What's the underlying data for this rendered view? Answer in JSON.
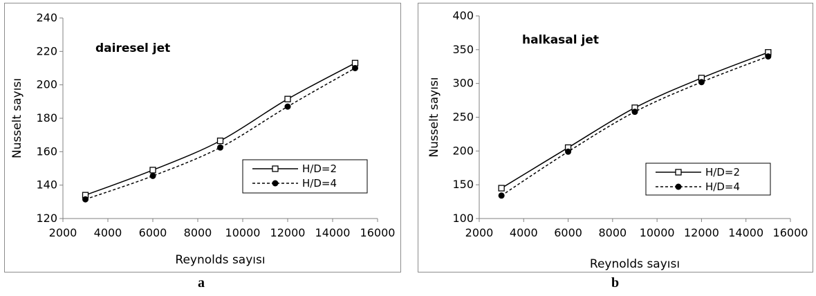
{
  "chart_data": [
    {
      "type": "line",
      "title": "dairesel jet",
      "xlabel": "Reynolds sayısı",
      "ylabel": "Nusselt sayısı",
      "xlim": [
        2000,
        16000
      ],
      "ylim": [
        120,
        240
      ],
      "xticks": [
        2000,
        4000,
        6000,
        8000,
        10000,
        12000,
        14000,
        16000
      ],
      "yticks": [
        120,
        140,
        160,
        180,
        200,
        220,
        240
      ],
      "x": [
        3000,
        6000,
        9000,
        12000,
        15000
      ],
      "series": [
        {
          "name": "H/D=2",
          "values": [
            134,
            149,
            166.5,
            191.5,
            213
          ],
          "line": "solid",
          "marker": "open-square",
          "color": "#000000"
        },
        {
          "name": "H/D=4",
          "values": [
            131.5,
            145.5,
            162.5,
            187,
            210
          ],
          "line": "dashed",
          "marker": "filled-circle",
          "color": "#000000"
        }
      ],
      "legend": "bottom-right",
      "grid": false,
      "caption": "a"
    },
    {
      "type": "line",
      "title": "halkasal jet",
      "xlabel": "Reynolds sayısı",
      "ylabel": "Nusselt sayısı",
      "xlim": [
        2000,
        16000
      ],
      "ylim": [
        100,
        400
      ],
      "xticks": [
        2000,
        4000,
        6000,
        8000,
        10000,
        12000,
        14000,
        16000
      ],
      "yticks": [
        100,
        150,
        200,
        250,
        300,
        350,
        400
      ],
      "x": [
        3000,
        6000,
        9000,
        12000,
        15000
      ],
      "series": [
        {
          "name": "H/D=2",
          "values": [
            145,
            205,
            264,
            308,
            346
          ],
          "line": "solid",
          "marker": "open-square",
          "color": "#000000"
        },
        {
          "name": "H/D=4",
          "values": [
            134,
            199,
            258,
            302,
            340
          ],
          "line": "dashed",
          "marker": "filled-circle",
          "color": "#000000"
        }
      ],
      "legend": "bottom-right",
      "grid": false,
      "caption": "b"
    }
  ]
}
